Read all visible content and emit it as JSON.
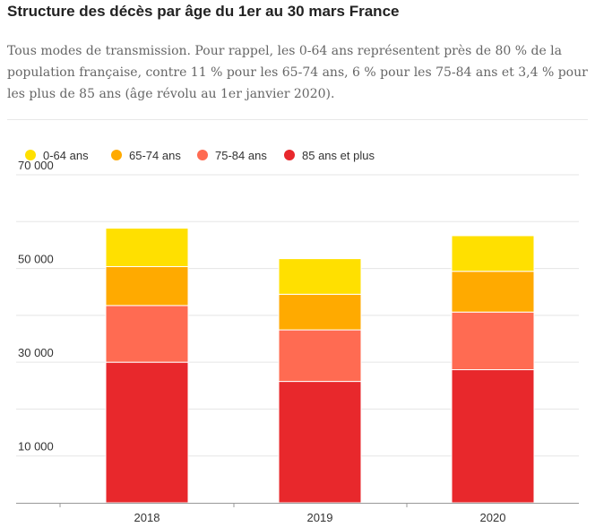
{
  "title": "Structure des décès par âge du 1er au 30 mars France",
  "subtitle": "Tous modes de transmission. Pour rappel, les 0-64 ans représentent près de 80 % de la population française, contre 11 % pour les 65-74 ans, 6 % pour les 75-84 ans et 3,4 % pour les plus de 85 ans (âge révolu au 1er janvier 2020).",
  "chart_data": {
    "type": "bar",
    "stacked": true,
    "categories": [
      "2018",
      "2019",
      "2020"
    ],
    "series": [
      {
        "name": "85 ans et plus",
        "color": "#e8282c",
        "values": [
          30000,
          25900,
          28400
        ]
      },
      {
        "name": "75-84 ans",
        "color": "#ff6b52",
        "values": [
          12100,
          11000,
          12300
        ]
      },
      {
        "name": "65-74 ans",
        "color": "#ffaa00",
        "values": [
          8300,
          7600,
          8700
        ]
      },
      {
        "name": "0-64 ans",
        "color": "#ffe000",
        "values": [
          8200,
          7600,
          7600
        ]
      }
    ],
    "legend_order": [
      "0-64 ans",
      "65-74 ans",
      "75-84 ans",
      "85 ans et plus"
    ],
    "yticks": [
      10000,
      20000,
      30000,
      40000,
      50000,
      60000,
      70000
    ],
    "ytick_labels": {
      "10000": "10 000",
      "30000": "30 000",
      "50000": "50 000",
      "70000": "70 000"
    },
    "ylim": [
      0,
      70000
    ],
    "grid": true,
    "legend_position": "top-left",
    "xlabel": "",
    "ylabel": ""
  }
}
